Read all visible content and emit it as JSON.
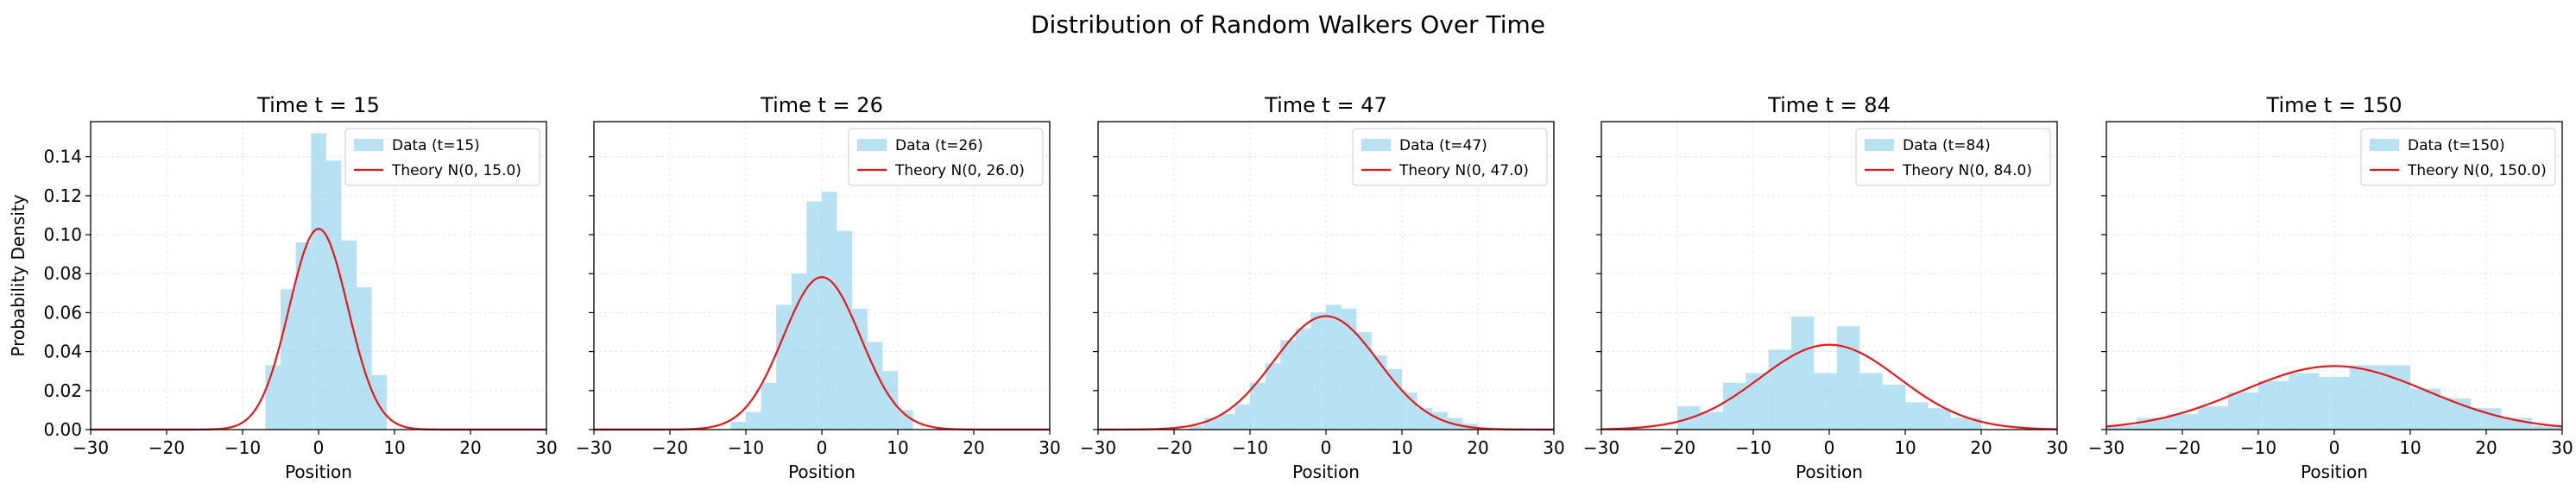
{
  "figure": {
    "suptitle": "Distribution of Random Walkers Over Time"
  },
  "colors": {
    "histogram": "#87CEEB",
    "theory": "#e41a1c",
    "grid": "#e6e6e6"
  },
  "chart_data": [
    {
      "type": "bar",
      "title": "Time t = 15",
      "xlabel": "Position",
      "ylabel": "Probability Density",
      "xlim": [
        -30,
        30
      ],
      "ylim": [
        0,
        0.158
      ],
      "xticks": [
        "−30",
        "−20",
        "−10",
        "0",
        "10",
        "20",
        "30"
      ],
      "yticks": [
        "0.00",
        "0.02",
        "0.04",
        "0.06",
        "0.08",
        "0.10",
        "0.12",
        "0.14"
      ],
      "grid": true,
      "legend_position": "top-right",
      "legend": [
        "Data (t=15)",
        "Theory N(0, 15.0)"
      ],
      "series": [
        {
          "name": "Data (t=15)",
          "kind": "histogram",
          "bins": [
            [
              -9,
              -7,
              0
            ],
            [
              -7,
              -5,
              0.033
            ],
            [
              -5,
              -3,
              0.072
            ],
            [
              -3,
              -1,
              0.096
            ],
            [
              -1,
              1,
              0.152
            ],
            [
              1,
              3,
              0.138
            ],
            [
              3,
              5,
              0.097
            ],
            [
              5,
              7,
              0.073
            ],
            [
              7,
              9,
              0.028
            ],
            [
              9,
              11,
              0
            ]
          ]
        },
        {
          "name": "Theory N(0, 15.0)",
          "kind": "normal",
          "mean": 0,
          "variance": 15.0
        }
      ]
    },
    {
      "type": "bar",
      "title": "Time t = 26",
      "xlabel": "Position",
      "ylabel": "",
      "xlim": [
        -30,
        30
      ],
      "ylim": [
        0,
        0.158
      ],
      "xticks": [
        "−30",
        "−20",
        "−10",
        "0",
        "10",
        "20",
        "30"
      ],
      "yticks": [],
      "grid": true,
      "legend_position": "top-right",
      "legend": [
        "Data (t=26)",
        "Theory N(0, 26.0)"
      ],
      "series": [
        {
          "name": "Data (t=26)",
          "kind": "histogram",
          "bins": [
            [
              -12,
              -10,
              0.004
            ],
            [
              -10,
              -8,
              0.009
            ],
            [
              -8,
              -6,
              0.024
            ],
            [
              -6,
              -4,
              0.064
            ],
            [
              -4,
              -2,
              0.08
            ],
            [
              -2,
              0,
              0.117
            ],
            [
              0,
              2,
              0.122
            ],
            [
              2,
              4,
              0.102
            ],
            [
              4,
              6,
              0.062
            ],
            [
              6,
              8,
              0.045
            ],
            [
              8,
              10,
              0.03
            ],
            [
              10,
              12,
              0.01
            ]
          ]
        },
        {
          "name": "Theory N(0, 26.0)",
          "kind": "normal",
          "mean": 0,
          "variance": 26.0
        }
      ]
    },
    {
      "type": "bar",
      "title": "Time t = 47",
      "xlabel": "Position",
      "ylabel": "",
      "xlim": [
        -30,
        30
      ],
      "ylim": [
        0,
        0.158
      ],
      "xticks": [
        "−30",
        "−20",
        "−10",
        "0",
        "10",
        "20",
        "30"
      ],
      "yticks": [],
      "grid": true,
      "legend_position": "top-right",
      "legend": [
        "Data (t=47)",
        "Theory N(0, 47.0)"
      ],
      "series": [
        {
          "name": "Data (t=47)",
          "kind": "histogram",
          "bins": [
            [
              -18,
              -16,
              0.002
            ],
            [
              -16,
              -14,
              0.006
            ],
            [
              -14,
              -12,
              0.008
            ],
            [
              -12,
              -10,
              0.013
            ],
            [
              -10,
              -8,
              0.024
            ],
            [
              -8,
              -6,
              0.034
            ],
            [
              -6,
              -4,
              0.046
            ],
            [
              -4,
              -2,
              0.052
            ],
            [
              -2,
              0,
              0.06
            ],
            [
              0,
              2,
              0.064
            ],
            [
              2,
              4,
              0.062
            ],
            [
              4,
              6,
              0.05
            ],
            [
              6,
              8,
              0.038
            ],
            [
              8,
              10,
              0.031
            ],
            [
              10,
              12,
              0.019
            ],
            [
              12,
              14,
              0.011
            ],
            [
              14,
              16,
              0.009
            ],
            [
              16,
              18,
              0.006
            ],
            [
              18,
              20,
              0.003
            ]
          ]
        },
        {
          "name": "Theory N(0, 47.0)",
          "kind": "normal",
          "mean": 0,
          "variance": 47.0
        }
      ]
    },
    {
      "type": "bar",
      "title": "Time t = 84",
      "xlabel": "Position",
      "ylabel": "",
      "xlim": [
        -30,
        30
      ],
      "ylim": [
        0,
        0.158
      ],
      "xticks": [
        "−30",
        "−20",
        "−10",
        "0",
        "10",
        "20",
        "30"
      ],
      "yticks": [],
      "grid": true,
      "legend_position": "top-right",
      "legend": [
        "Data (t=84)",
        "Theory N(0, 84.0)"
      ],
      "series": [
        {
          "name": "Data (t=84)",
          "kind": "histogram",
          "bins": [
            [
              -20,
              -17,
              0.012
            ],
            [
              -17,
              -14,
              0.009
            ],
            [
              -14,
              -11,
              0.024
            ],
            [
              -11,
              -8,
              0.029
            ],
            [
              -8,
              -5,
              0.041
            ],
            [
              -5,
              -2,
              0.058
            ],
            [
              -2,
              1,
              0.029
            ],
            [
              1,
              4,
              0.053
            ],
            [
              4,
              7,
              0.029
            ],
            [
              7,
              10,
              0.023
            ],
            [
              10,
              13,
              0.014
            ],
            [
              13,
              16,
              0.011
            ],
            [
              16,
              20,
              0.006
            ]
          ]
        },
        {
          "name": "Theory N(0, 84.0)",
          "kind": "normal",
          "mean": 0,
          "variance": 84.0
        }
      ]
    },
    {
      "type": "bar",
      "title": "Time t = 150",
      "xlabel": "Position",
      "ylabel": "",
      "xlim": [
        -30,
        30
      ],
      "ylim": [
        0,
        0.158
      ],
      "xticks": [
        "−30",
        "−20",
        "−10",
        "0",
        "10",
        "20",
        "30"
      ],
      "yticks": [],
      "grid": true,
      "legend_position": "top-right",
      "legend": [
        "Data (t=150)",
        "Theory N(0, 150.0)"
      ],
      "series": [
        {
          "name": "Data (t=150)",
          "kind": "histogram",
          "bins": [
            [
              -30,
              -26,
              0.002
            ],
            [
              -26,
              -22,
              0.006
            ],
            [
              -22,
              -18,
              0.008
            ],
            [
              -18,
              -14,
              0.012
            ],
            [
              -14,
              -10,
              0.019
            ],
            [
              -10,
              -6,
              0.025
            ],
            [
              -6,
              -2,
              0.029
            ],
            [
              -2,
              2,
              0.027
            ],
            [
              2,
              6,
              0.033
            ],
            [
              6,
              10,
              0.033
            ],
            [
              10,
              14,
              0.021
            ],
            [
              14,
              18,
              0.016
            ],
            [
              18,
              22,
              0.011
            ],
            [
              22,
              26,
              0.006
            ],
            [
              26,
              30,
              0.002
            ]
          ]
        },
        {
          "name": "Theory N(0, 150.0)",
          "kind": "normal",
          "mean": 0,
          "variance": 150.0
        }
      ]
    }
  ]
}
